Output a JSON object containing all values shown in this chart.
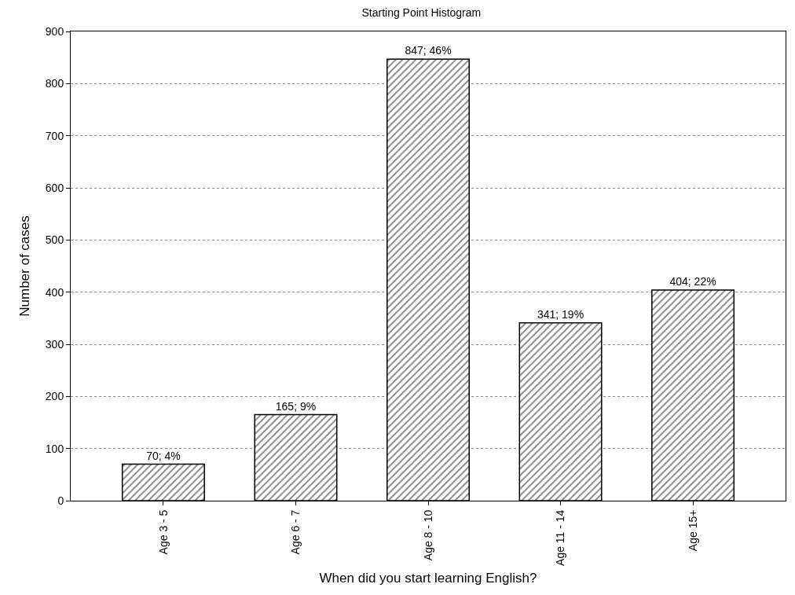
{
  "chart_data": {
    "type": "bar",
    "title": "Starting Point Histogram",
    "xlabel": "When did you start learning English?",
    "ylabel": "Number of cases",
    "categories": [
      "Age 3 - 5",
      "Age 6 - 7",
      "Age 8 - 10",
      "Age 11 - 14",
      "Age 15+"
    ],
    "values": [
      70,
      165,
      847,
      341,
      404
    ],
    "value_labels": [
      "70; 4%",
      "165; 9%",
      "847; 46%",
      "341; 19%",
      "404; 22%"
    ],
    "color": "#000000",
    "ylim": [
      0,
      900
    ],
    "yticks": [
      0,
      100,
      200,
      300,
      400,
      500,
      600,
      700,
      800,
      900
    ],
    "grid": "y"
  }
}
